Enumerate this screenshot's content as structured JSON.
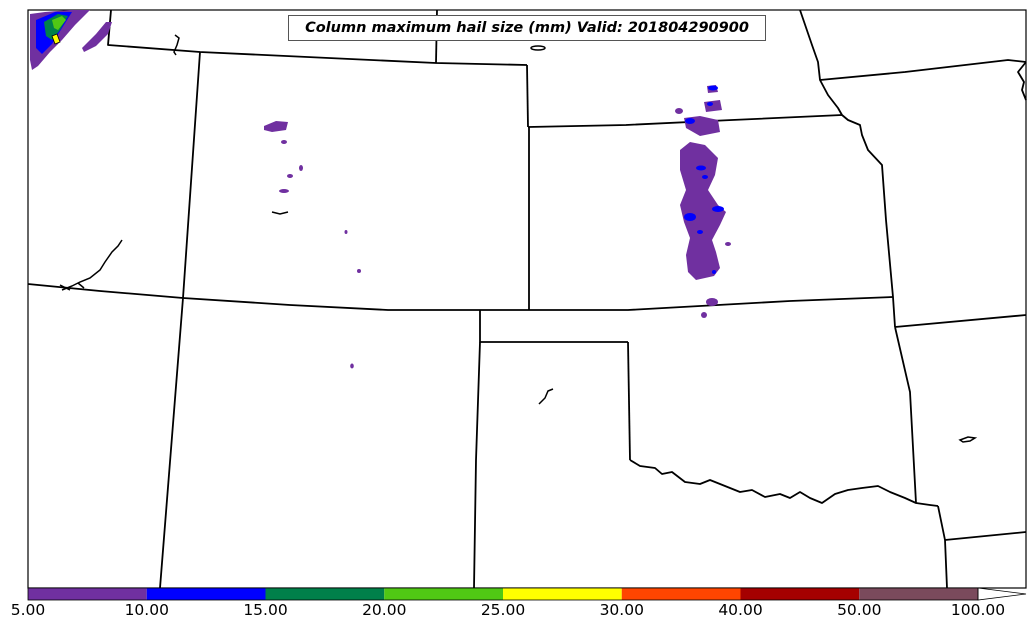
{
  "title": "Column maximum hail size (mm) Valid: 201804290900",
  "colorbar": {
    "bins": [
      {
        "from": 5,
        "to": 10,
        "color": "#7030a0"
      },
      {
        "from": 10,
        "to": 15,
        "color": "#0000ff"
      },
      {
        "from": 15,
        "to": 20,
        "color": "#00804a"
      },
      {
        "from": 20,
        "to": 25,
        "color": "#50c814"
      },
      {
        "from": 25,
        "to": 30,
        "color": "#ffff00"
      },
      {
        "from": 30,
        "to": 40,
        "color": "#ff4500"
      },
      {
        "from": 40,
        "to": 50,
        "color": "#a50000"
      },
      {
        "from": 50,
        "to": 100,
        "color": "#7a4a5c"
      }
    ],
    "tick_labels": [
      "5.00",
      "10.00",
      "15.00",
      "20.00",
      "25.00",
      "30.00",
      "40.00",
      "50.00",
      "100.00"
    ],
    "extend": "max"
  },
  "legend_colors": {
    "state_border": "#000000",
    "hail_5_10": "#7030a0",
    "hail_10_15": "#0000ff",
    "hail_15_20": "#00804a",
    "hail_20_25": "#50c814",
    "hail_25_30": "#ffff00"
  }
}
